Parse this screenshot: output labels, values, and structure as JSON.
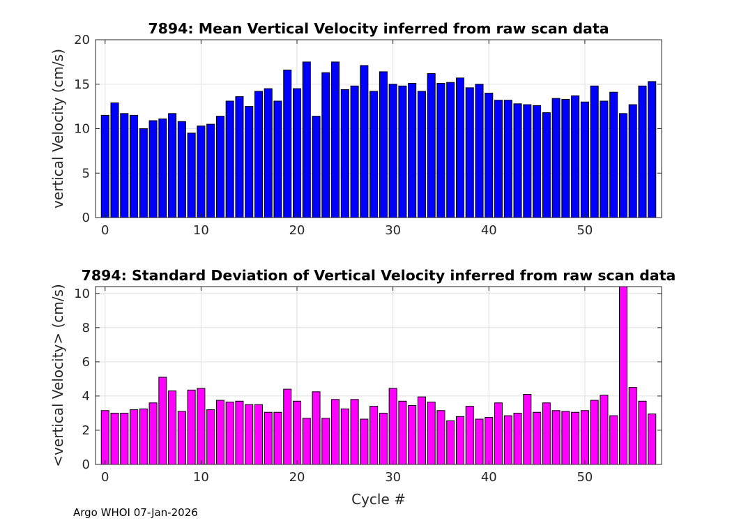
{
  "footer": "Argo WHOI 07-Jan-2026",
  "chart_data": [
    {
      "type": "bar",
      "title": "7894: Mean Vertical Velocity inferred from raw scan data",
      "xlabel": "",
      "ylabel": "vertical Velocity (cm/s)",
      "xlim": [
        -1,
        58
      ],
      "ylim": [
        0,
        20
      ],
      "xticks": [
        0,
        10,
        20,
        30,
        40,
        50
      ],
      "yticks": [
        0,
        5,
        10,
        15,
        20
      ],
      "grid": true,
      "color": "#0000ff",
      "x": [
        0,
        1,
        2,
        3,
        4,
        5,
        6,
        7,
        8,
        9,
        10,
        11,
        12,
        13,
        14,
        15,
        16,
        17,
        18,
        19,
        20,
        21,
        22,
        23,
        24,
        25,
        26,
        27,
        28,
        29,
        30,
        31,
        32,
        33,
        34,
        35,
        36,
        37,
        38,
        39,
        40,
        41,
        42,
        43,
        44,
        45,
        46,
        47,
        48,
        49,
        50,
        51,
        52,
        53,
        54,
        55,
        56,
        57
      ],
      "values": [
        11.5,
        12.9,
        11.7,
        11.5,
        10.0,
        10.9,
        11.1,
        11.7,
        10.8,
        9.5,
        10.3,
        10.5,
        11.4,
        13.1,
        13.6,
        12.5,
        14.2,
        14.5,
        13.1,
        16.6,
        14.5,
        17.5,
        11.4,
        16.3,
        17.5,
        14.4,
        14.8,
        17.1,
        14.2,
        16.4,
        15.0,
        14.8,
        15.1,
        14.2,
        16.2,
        15.1,
        15.2,
        15.7,
        14.6,
        15.0,
        14.0,
        13.2,
        13.2,
        12.8,
        12.7,
        12.6,
        11.8,
        13.4,
        13.3,
        13.7,
        13.0,
        14.8,
        13.1,
        14.1,
        11.7,
        12.7,
        14.8,
        15.3
      ]
    },
    {
      "type": "bar",
      "title": "7894: Standard Deviation of Vertical Velocity inferred from raw scan data",
      "xlabel": "Cycle #",
      "ylabel": "<vertical Velocity> (cm/s)",
      "xlim": [
        -1,
        58
      ],
      "ylim": [
        0,
        10.4
      ],
      "xticks": [
        0,
        10,
        20,
        30,
        40,
        50
      ],
      "yticks": [
        0,
        2,
        4,
        6,
        8,
        10
      ],
      "grid": true,
      "color": "#ff00ff",
      "x": [
        0,
        1,
        2,
        3,
        4,
        5,
        6,
        7,
        8,
        9,
        10,
        11,
        12,
        13,
        14,
        15,
        16,
        17,
        18,
        19,
        20,
        21,
        22,
        23,
        24,
        25,
        26,
        27,
        28,
        29,
        30,
        31,
        32,
        33,
        34,
        35,
        36,
        37,
        38,
        39,
        40,
        41,
        42,
        43,
        44,
        45,
        46,
        47,
        48,
        49,
        50,
        51,
        52,
        53,
        54,
        55,
        56,
        57
      ],
      "values": [
        3.15,
        3.0,
        3.0,
        3.2,
        3.25,
        3.6,
        5.1,
        4.3,
        3.1,
        4.35,
        4.45,
        3.2,
        3.75,
        3.65,
        3.7,
        3.5,
        3.5,
        3.05,
        3.05,
        4.4,
        3.7,
        2.7,
        4.25,
        2.7,
        3.8,
        3.25,
        3.8,
        2.65,
        3.4,
        3.0,
        4.45,
        3.7,
        3.45,
        3.95,
        3.65,
        3.15,
        2.55,
        2.8,
        3.4,
        2.65,
        2.75,
        3.6,
        2.85,
        3.0,
        4.1,
        3.05,
        3.6,
        3.15,
        3.1,
        3.05,
        3.15,
        3.75,
        4.05,
        2.85,
        10.4,
        4.5,
        3.7,
        2.95
      ]
    }
  ]
}
